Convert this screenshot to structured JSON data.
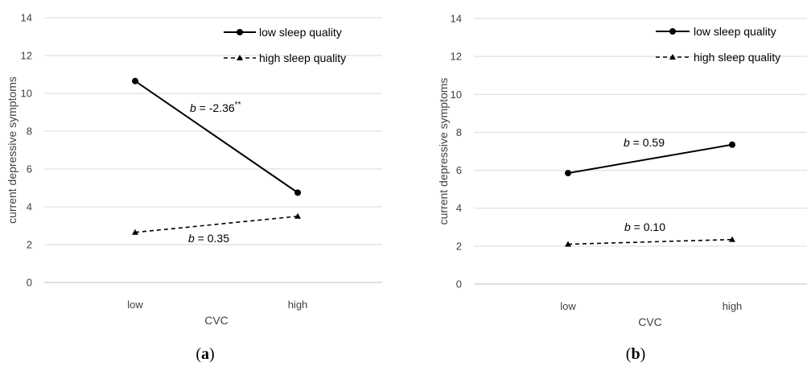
{
  "chart_data": [
    {
      "type": "line",
      "panel_label": "a",
      "categories": [
        "low",
        "high"
      ],
      "xlabel": "CVC",
      "ylabel": "current depressive symptoms",
      "ylim": [
        0,
        14
      ],
      "yticks": [
        0,
        2,
        4,
        6,
        8,
        10,
        12,
        14
      ],
      "grid": true,
      "legend_position": "top-right",
      "series": [
        {
          "name": "low sleep quality",
          "values": [
            10.65,
            4.75
          ],
          "style": "solid",
          "marker": "circle"
        },
        {
          "name": "high sleep quality",
          "values": [
            2.65,
            3.5
          ],
          "style": "dashed",
          "marker": "triangle"
        }
      ],
      "annotations": [
        {
          "prefix": "b",
          "text": " = -2.36",
          "sup": "**",
          "series": 0
        },
        {
          "prefix": "b",
          "text": " = 0.35",
          "sup": "",
          "series": 1
        }
      ]
    },
    {
      "type": "line",
      "panel_label": "b",
      "categories": [
        "low",
        "high"
      ],
      "xlabel": "CVC",
      "ylabel": "current depressive symptoms",
      "ylim": [
        0,
        14
      ],
      "yticks": [
        0,
        2,
        4,
        6,
        8,
        10,
        12,
        14
      ],
      "grid": true,
      "legend_position": "top-right",
      "series": [
        {
          "name": "low sleep quality",
          "values": [
            5.85,
            7.35
          ],
          "style": "solid",
          "marker": "circle"
        },
        {
          "name": "high sleep quality",
          "values": [
            2.1,
            2.35
          ],
          "style": "dashed",
          "marker": "triangle"
        }
      ],
      "annotations": [
        {
          "prefix": "b",
          "text": " = 0.59",
          "sup": "",
          "series": 0
        },
        {
          "prefix": "b",
          "text": " = 0.10",
          "sup": "",
          "series": 1
        }
      ]
    }
  ],
  "colors": {
    "line": "#000000",
    "grid": "#d9d9d9",
    "text": "#404040"
  }
}
